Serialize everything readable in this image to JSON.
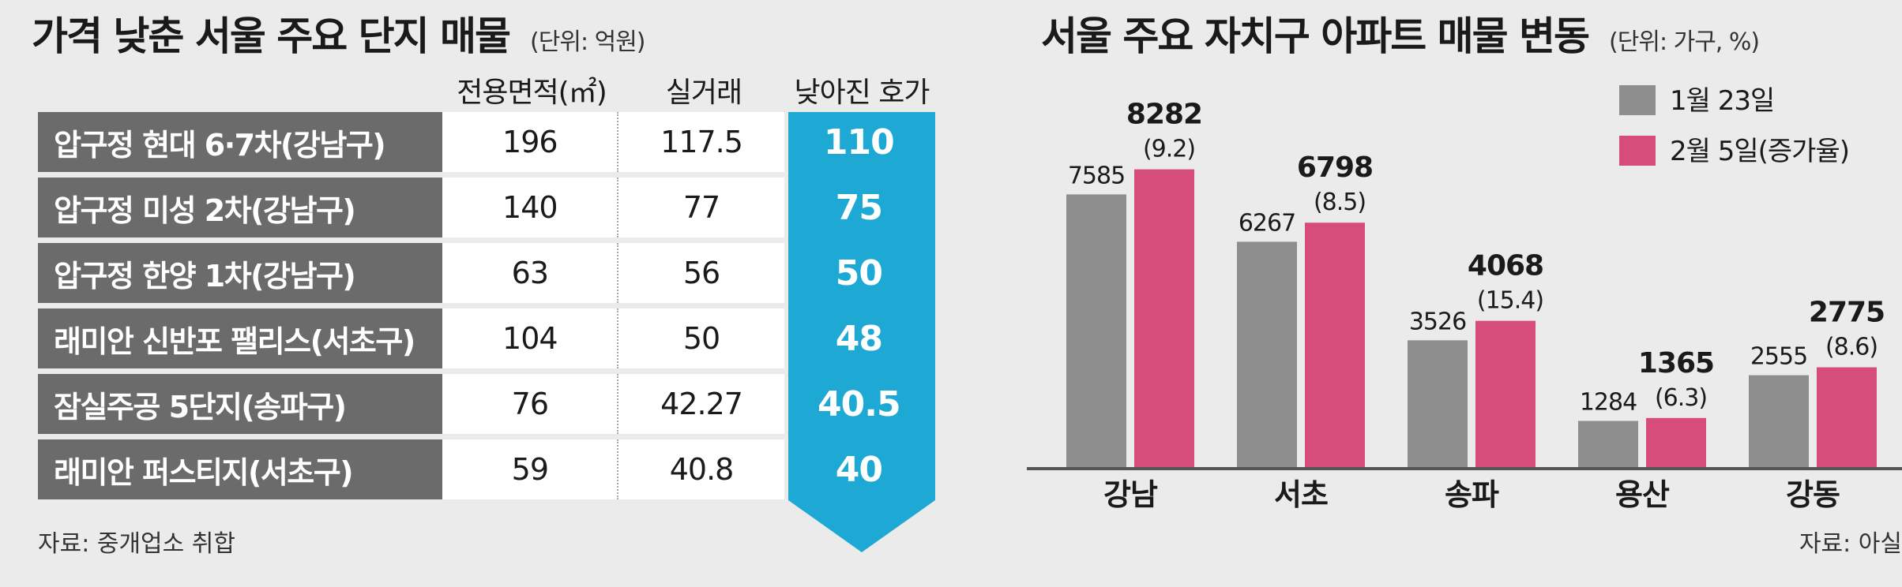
{
  "left": {
    "title": "가격 낮춘 서울 주요 단지 매물",
    "unit": "(단위: 억원)",
    "headers": {
      "area": "전용면적(㎡)",
      "deal": "실거래",
      "drop": "낮아진 호가"
    },
    "rows": [
      {
        "name": "압구정 현대 6·7차(강남구)",
        "area": "196",
        "deal": "117.5",
        "drop": "110"
      },
      {
        "name": "압구정 미성 2차(강남구)",
        "area": "140",
        "deal": "77",
        "drop": "75"
      },
      {
        "name": "압구정 한양 1차(강남구)",
        "area": "63",
        "deal": "56",
        "drop": "50"
      },
      {
        "name": "래미안 신반포 팰리스(서초구)",
        "area": "104",
        "deal": "50",
        "drop": "48"
      },
      {
        "name": "잠실주공 5단지(송파구)",
        "area": "76",
        "deal": "42.27",
        "drop": "40.5"
      },
      {
        "name": "래미안 퍼스티지(서초구)",
        "area": "59",
        "deal": "40.8",
        "drop": "40"
      }
    ],
    "source": "자료: 중개업소 취합",
    "colors": {
      "name_bg": "#6b6b6b",
      "drop_bg": "#1ea9d4"
    }
  },
  "right": {
    "title": "서울 주요 자치구 아파트 매물 변동",
    "unit": "(단위: 가구, %)",
    "source": "자료: 아실"
  },
  "chart_data": {
    "type": "bar",
    "title": "서울 주요 자치구 아파트 매물 변동",
    "categories": [
      "강남",
      "서초",
      "송파",
      "용산",
      "강동"
    ],
    "series": [
      {
        "name": "1월 23일",
        "values": [
          7585,
          6267,
          3526,
          1284,
          2555
        ],
        "color": "#8e8e8e"
      },
      {
        "name": "2월 5일(증가율)",
        "values": [
          8282,
          6798,
          4068,
          1365,
          2775
        ],
        "color": "#d64d7c"
      }
    ],
    "growth_labels": [
      "(9.2)",
      "(8.5)",
      "(15.4)",
      "(6.3)",
      "(8.6)"
    ],
    "ylim": [
      0,
      9700
    ],
    "legend": "top-right",
    "grid": false
  }
}
